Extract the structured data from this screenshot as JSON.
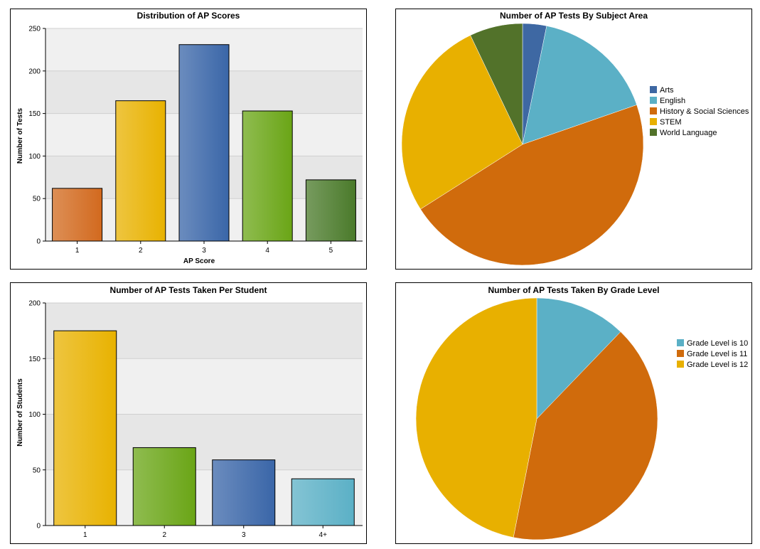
{
  "chart_data": [
    {
      "type": "bar",
      "title": "Distribution of AP Scores",
      "xlabel": "AP Score",
      "ylabel": "Number of Tests",
      "categories": [
        "1",
        "2",
        "3",
        "4",
        "5"
      ],
      "values": [
        62,
        165,
        231,
        153,
        72
      ],
      "ylim": [
        0,
        250
      ],
      "yticks": [
        "0",
        "50",
        "100",
        "150",
        "200",
        "250"
      ],
      "colors": [
        "#d2691e",
        "#e8b200",
        "#3a66a8",
        "#6aa516",
        "#4a7a2a"
      ],
      "grid": true
    },
    {
      "type": "pie",
      "title": "Number of AP Tests By Subject Area",
      "labels": [
        "Arts",
        "English",
        "History & Social Sciences",
        "STEM",
        "World Language"
      ],
      "values": [
        3.2,
        16.5,
        46.3,
        26.9,
        7.1
      ],
      "colors": [
        "#3e68a3",
        "#5bb0c6",
        "#d06b0c",
        "#e8b000",
        "#52722a"
      ],
      "legend_position": "right"
    },
    {
      "type": "bar",
      "title": "Number of AP Tests Taken Per Student",
      "xlabel": "",
      "ylabel": "Number of Students",
      "categories": [
        "1",
        "2",
        "3",
        "4+"
      ],
      "values": [
        175,
        70,
        59,
        42
      ],
      "ylim": [
        0,
        200
      ],
      "yticks": [
        "0",
        "50",
        "100",
        "150",
        "200"
      ],
      "colors": [
        "#e8b200",
        "#6aa516",
        "#3a66a8",
        "#5bb0c6"
      ],
      "grid": true
    },
    {
      "type": "pie",
      "title": "Number of AP Tests Taken By Grade Level",
      "labels": [
        "Grade Level is 10",
        "Grade Level is 11",
        "Grade Level is 12"
      ],
      "values": [
        12.2,
        40.9,
        46.9
      ],
      "colors": [
        "#5bb0c6",
        "#d06b0c",
        "#e8b000"
      ],
      "legend_position": "right"
    }
  ]
}
